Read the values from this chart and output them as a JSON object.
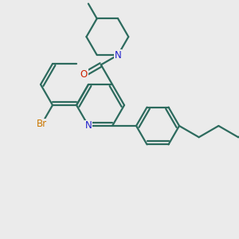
{
  "bg_color": "#ebebeb",
  "bond_color": "#2d6b5e",
  "N_color": "#2020cc",
  "O_color": "#cc2200",
  "Br_color": "#cc7700",
  "line_width": 1.6,
  "font_size": 8.5,
  "figsize": [
    3.0,
    3.0
  ],
  "dpi": 100,
  "xlim": [
    0,
    10
  ],
  "ylim": [
    0,
    10
  ]
}
